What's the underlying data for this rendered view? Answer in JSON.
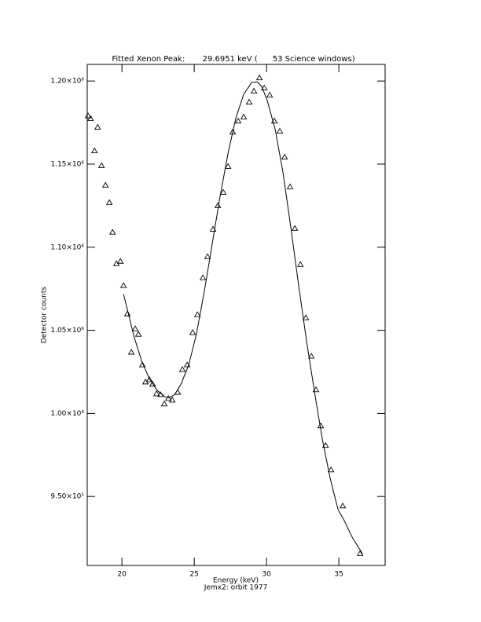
{
  "chart_data": {
    "type": "scatter",
    "title": "Fitted Xenon Peak:       29.6951 keV (      53 Science windows)",
    "xlabel": "Energy (keV)",
    "subtitle": "Jemx2: orbit 1977",
    "ylabel": "Detector counts",
    "xlim": [
      17.6,
      38.2
    ],
    "ylim": [
      908500,
      1210000
    ],
    "xticks": [
      20,
      25,
      30,
      35
    ],
    "yticks": [
      {
        "value": 950000,
        "label": "9.50×10⁵"
      },
      {
        "value": 1000000,
        "label": "1.00×10⁶"
      },
      {
        "value": 1050000,
        "label": "1.05×10⁶"
      },
      {
        "value": 1100000,
        "label": "1.10×10⁶"
      },
      {
        "value": 1150000,
        "label": "1.15×10⁶"
      },
      {
        "value": 1200000,
        "label": "1.20×10⁶"
      }
    ],
    "series": [
      {
        "color": "#000000",
        "marker": "triangle",
        "x": [
          17.66,
          17.83,
          18.1,
          18.32,
          18.59,
          18.86,
          19.13,
          19.35,
          19.62,
          19.89,
          20.11,
          20.38,
          20.65,
          20.92,
          21.14,
          21.41,
          21.63,
          21.9,
          22.12,
          22.39,
          22.66,
          22.93,
          23.21,
          23.48,
          23.86,
          24.18,
          24.51,
          24.89,
          25.22,
          25.6,
          25.92,
          26.3,
          26.63,
          27.01,
          27.34,
          27.66,
          28.04,
          28.42,
          28.8,
          29.13,
          29.51,
          29.84,
          30.22,
          30.54,
          30.92,
          31.25,
          31.63,
          31.96,
          32.34,
          32.72,
          33.1,
          33.42,
          33.75,
          34.08,
          34.46,
          35.27,
          36.47
        ],
        "values": [
          1179000,
          1177400,
          1158000,
          1172200,
          1149100,
          1137300,
          1126900,
          1109000,
          1090100,
          1091500,
          1076900,
          1059900,
          1036800,
          1050900,
          1047600,
          1029200,
          1018900,
          1020300,
          1017500,
          1011800,
          1011300,
          1005700,
          1009000,
          1008000,
          1012700,
          1026400,
          1029200,
          1048600,
          1059400,
          1081600,
          1094300,
          1110800,
          1125000,
          1133000,
          1148600,
          1169300,
          1175900,
          1178300,
          1187300,
          1193900,
          1201900,
          1195800,
          1191500,
          1175900,
          1169800,
          1154200,
          1136300,
          1111300,
          1089600,
          1057500,
          1034400,
          1014200,
          992500,
          980700,
          966000,
          944300,
          915600
        ]
      },
      {
        "color": "#000000",
        "marker": "none",
        "x": [
          20.11,
          20.38,
          20.82,
          21.36,
          21.9,
          22.45,
          22.99,
          23.26,
          23.64,
          24.08,
          24.62,
          25.16,
          25.71,
          26.25,
          26.79,
          27.34,
          27.88,
          28.42,
          28.97,
          29.35,
          29.67,
          30.05,
          30.6,
          31.14,
          31.68,
          32.23,
          32.77,
          33.32,
          33.86,
          34.4,
          34.95,
          35.33,
          35.92,
          36.63
        ],
        "values": [
          1071700,
          1062300,
          1046700,
          1031600,
          1020800,
          1013700,
          1009900,
          1009400,
          1011300,
          1017500,
          1029200,
          1048100,
          1074100,
          1102400,
          1130700,
          1156600,
          1177800,
          1192000,
          1199100,
          1199500,
          1196700,
          1188200,
          1170800,
          1144800,
          1111800,
          1076400,
          1043400,
          1012700,
          984400,
          960900,
          942000,
          936300,
          925500,
          915600
        ]
      }
    ]
  }
}
